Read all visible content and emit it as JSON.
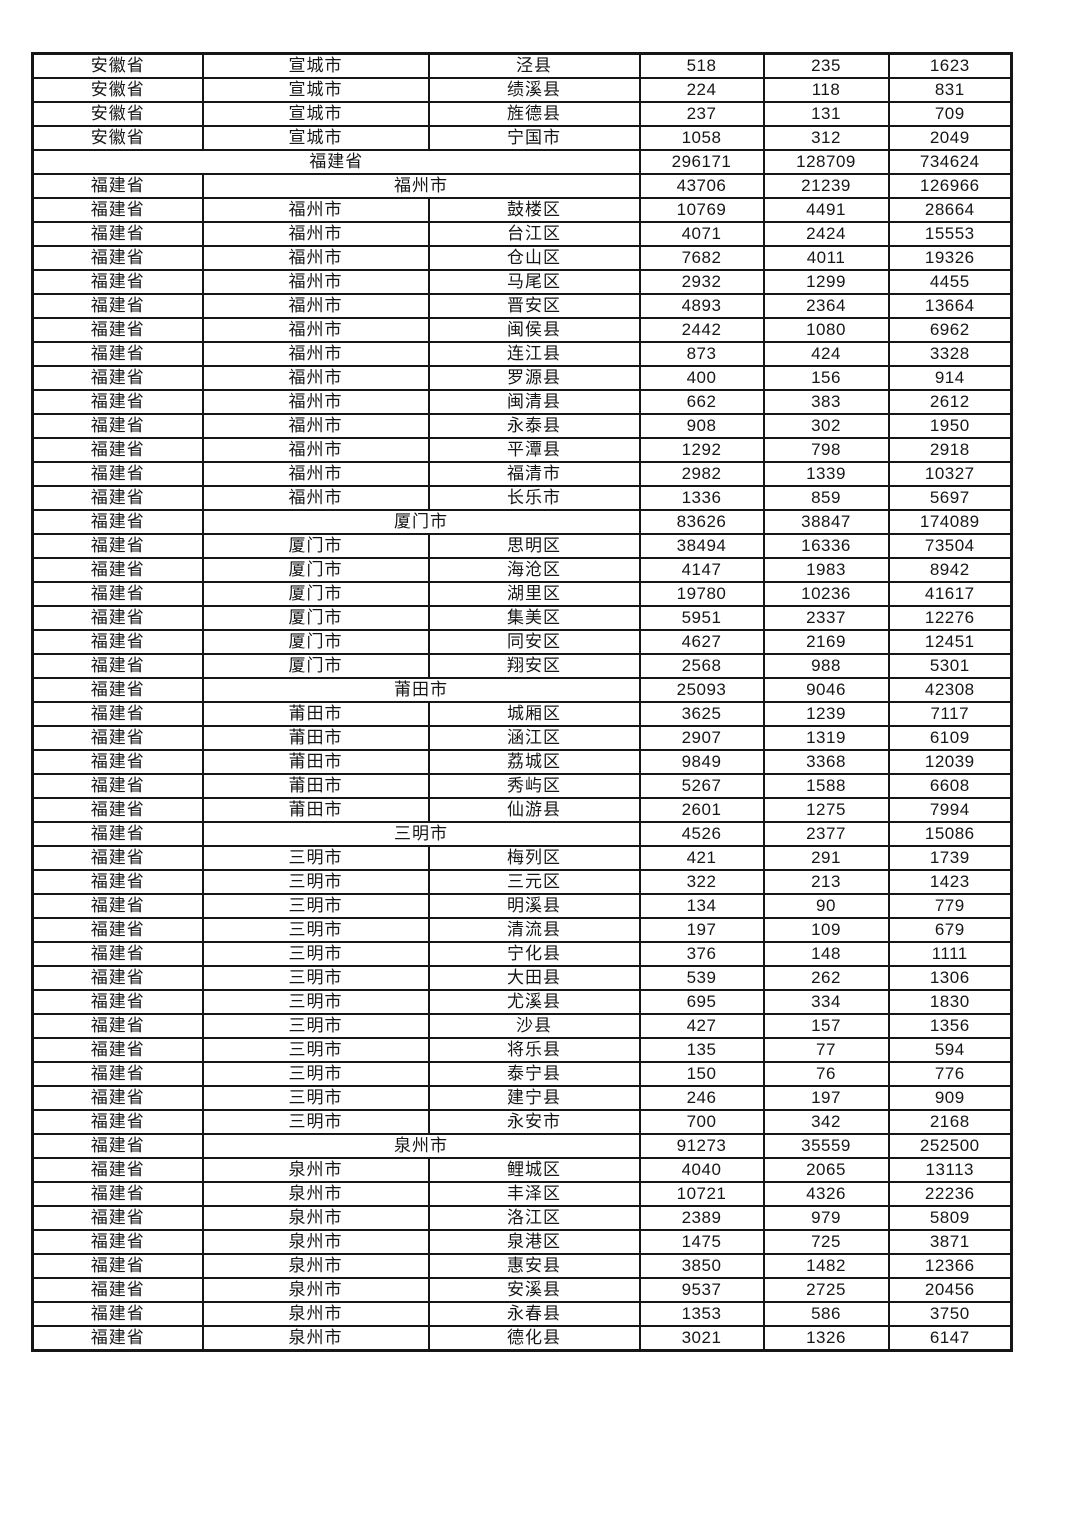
{
  "colors": {
    "background": "#ffffff",
    "border": "#161616",
    "text": "#161616"
  },
  "table": {
    "columns": [
      "province",
      "city",
      "district",
      "value1",
      "value2",
      "value3"
    ],
    "rows": [
      {
        "type": "data",
        "province": "安徽省",
        "city": "宣城市",
        "district": "泾县",
        "values": [
          518,
          235,
          1623
        ]
      },
      {
        "type": "data",
        "province": "安徽省",
        "city": "宣城市",
        "district": "绩溪县",
        "values": [
          224,
          118,
          831
        ]
      },
      {
        "type": "data",
        "province": "安徽省",
        "city": "宣城市",
        "district": "旌德县",
        "values": [
          237,
          131,
          709
        ]
      },
      {
        "type": "data",
        "province": "安徽省",
        "city": "宣城市",
        "district": "宁国市",
        "values": [
          1058,
          312,
          2049
        ]
      },
      {
        "type": "province_total",
        "label": "福建省",
        "values": [
          296171,
          128709,
          734624
        ]
      },
      {
        "type": "city_total",
        "province": "福建省",
        "city": "福州市",
        "values": [
          43706,
          21239,
          126966
        ]
      },
      {
        "type": "data",
        "province": "福建省",
        "city": "福州市",
        "district": "鼓楼区",
        "values": [
          10769,
          4491,
          28664
        ]
      },
      {
        "type": "data",
        "province": "福建省",
        "city": "福州市",
        "district": "台江区",
        "values": [
          4071,
          2424,
          15553
        ]
      },
      {
        "type": "data",
        "province": "福建省",
        "city": "福州市",
        "district": "仓山区",
        "values": [
          7682,
          4011,
          19326
        ]
      },
      {
        "type": "data",
        "province": "福建省",
        "city": "福州市",
        "district": "马尾区",
        "values": [
          2932,
          1299,
          4455
        ]
      },
      {
        "type": "data",
        "province": "福建省",
        "city": "福州市",
        "district": "晋安区",
        "values": [
          4893,
          2364,
          13664
        ]
      },
      {
        "type": "data",
        "province": "福建省",
        "city": "福州市",
        "district": "闽侯县",
        "values": [
          2442,
          1080,
          6962
        ]
      },
      {
        "type": "data",
        "province": "福建省",
        "city": "福州市",
        "district": "连江县",
        "values": [
          873,
          424,
          3328
        ]
      },
      {
        "type": "data",
        "province": "福建省",
        "city": "福州市",
        "district": "罗源县",
        "values": [
          400,
          156,
          914
        ]
      },
      {
        "type": "data",
        "province": "福建省",
        "city": "福州市",
        "district": "闽清县",
        "values": [
          662,
          383,
          2612
        ]
      },
      {
        "type": "data",
        "province": "福建省",
        "city": "福州市",
        "district": "永泰县",
        "values": [
          908,
          302,
          1950
        ]
      },
      {
        "type": "data",
        "province": "福建省",
        "city": "福州市",
        "district": "平潭县",
        "values": [
          1292,
          798,
          2918
        ]
      },
      {
        "type": "data",
        "province": "福建省",
        "city": "福州市",
        "district": "福清市",
        "values": [
          2982,
          1339,
          10327
        ]
      },
      {
        "type": "data",
        "province": "福建省",
        "city": "福州市",
        "district": "长乐市",
        "values": [
          1336,
          859,
          5697
        ]
      },
      {
        "type": "city_total",
        "province": "福建省",
        "city": "厦门市",
        "values": [
          83626,
          38847,
          174089
        ]
      },
      {
        "type": "data",
        "province": "福建省",
        "city": "厦门市",
        "district": "思明区",
        "values": [
          38494,
          16336,
          73504
        ]
      },
      {
        "type": "data",
        "province": "福建省",
        "city": "厦门市",
        "district": "海沧区",
        "values": [
          4147,
          1983,
          8942
        ]
      },
      {
        "type": "data",
        "province": "福建省",
        "city": "厦门市",
        "district": "湖里区",
        "values": [
          19780,
          10236,
          41617
        ]
      },
      {
        "type": "data",
        "province": "福建省",
        "city": "厦门市",
        "district": "集美区",
        "values": [
          5951,
          2337,
          12276
        ]
      },
      {
        "type": "data",
        "province": "福建省",
        "city": "厦门市",
        "district": "同安区",
        "values": [
          4627,
          2169,
          12451
        ]
      },
      {
        "type": "data",
        "province": "福建省",
        "city": "厦门市",
        "district": "翔安区",
        "values": [
          2568,
          988,
          5301
        ]
      },
      {
        "type": "city_total",
        "province": "福建省",
        "city": "莆田市",
        "values": [
          25093,
          9046,
          42308
        ]
      },
      {
        "type": "data",
        "province": "福建省",
        "city": "莆田市",
        "district": "城厢区",
        "values": [
          3625,
          1239,
          7117
        ]
      },
      {
        "type": "data",
        "province": "福建省",
        "city": "莆田市",
        "district": "涵江区",
        "values": [
          2907,
          1319,
          6109
        ]
      },
      {
        "type": "data",
        "province": "福建省",
        "city": "莆田市",
        "district": "荔城区",
        "values": [
          9849,
          3368,
          12039
        ]
      },
      {
        "type": "data",
        "province": "福建省",
        "city": "莆田市",
        "district": "秀屿区",
        "values": [
          5267,
          1588,
          6608
        ]
      },
      {
        "type": "data",
        "province": "福建省",
        "city": "莆田市",
        "district": "仙游县",
        "values": [
          2601,
          1275,
          7994
        ]
      },
      {
        "type": "city_total",
        "province": "福建省",
        "city": "三明市",
        "values": [
          4526,
          2377,
          15086
        ]
      },
      {
        "type": "data",
        "province": "福建省",
        "city": "三明市",
        "district": "梅列区",
        "values": [
          421,
          291,
          1739
        ]
      },
      {
        "type": "data",
        "province": "福建省",
        "city": "三明市",
        "district": "三元区",
        "values": [
          322,
          213,
          1423
        ]
      },
      {
        "type": "data",
        "province": "福建省",
        "city": "三明市",
        "district": "明溪县",
        "values": [
          134,
          90,
          779
        ]
      },
      {
        "type": "data",
        "province": "福建省",
        "city": "三明市",
        "district": "清流县",
        "values": [
          197,
          109,
          679
        ]
      },
      {
        "type": "data",
        "province": "福建省",
        "city": "三明市",
        "district": "宁化县",
        "values": [
          376,
          148,
          1111
        ]
      },
      {
        "type": "data",
        "province": "福建省",
        "city": "三明市",
        "district": "大田县",
        "values": [
          539,
          262,
          1306
        ]
      },
      {
        "type": "data",
        "province": "福建省",
        "city": "三明市",
        "district": "尤溪县",
        "values": [
          695,
          334,
          1830
        ]
      },
      {
        "type": "data",
        "province": "福建省",
        "city": "三明市",
        "district": "沙县",
        "values": [
          427,
          157,
          1356
        ]
      },
      {
        "type": "data",
        "province": "福建省",
        "city": "三明市",
        "district": "将乐县",
        "values": [
          135,
          77,
          594
        ]
      },
      {
        "type": "data",
        "province": "福建省",
        "city": "三明市",
        "district": "泰宁县",
        "values": [
          150,
          76,
          776
        ]
      },
      {
        "type": "data",
        "province": "福建省",
        "city": "三明市",
        "district": "建宁县",
        "values": [
          246,
          197,
          909
        ]
      },
      {
        "type": "data",
        "province": "福建省",
        "city": "三明市",
        "district": "永安市",
        "values": [
          700,
          342,
          2168
        ]
      },
      {
        "type": "city_total",
        "province": "福建省",
        "city": "泉州市",
        "values": [
          91273,
          35559,
          252500
        ]
      },
      {
        "type": "data",
        "province": "福建省",
        "city": "泉州市",
        "district": "鲤城区",
        "values": [
          4040,
          2065,
          13113
        ]
      },
      {
        "type": "data",
        "province": "福建省",
        "city": "泉州市",
        "district": "丰泽区",
        "values": [
          10721,
          4326,
          22236
        ]
      },
      {
        "type": "data",
        "province": "福建省",
        "city": "泉州市",
        "district": "洛江区",
        "values": [
          2389,
          979,
          5809
        ]
      },
      {
        "type": "data",
        "province": "福建省",
        "city": "泉州市",
        "district": "泉港区",
        "values": [
          1475,
          725,
          3871
        ]
      },
      {
        "type": "data",
        "province": "福建省",
        "city": "泉州市",
        "district": "惠安县",
        "values": [
          3850,
          1482,
          12366
        ]
      },
      {
        "type": "data",
        "province": "福建省",
        "city": "泉州市",
        "district": "安溪县",
        "values": [
          9537,
          2725,
          20456
        ]
      },
      {
        "type": "data",
        "province": "福建省",
        "city": "泉州市",
        "district": "永春县",
        "values": [
          1353,
          586,
          3750
        ]
      },
      {
        "type": "data",
        "province": "福建省",
        "city": "泉州市",
        "district": "德化县",
        "values": [
          3021,
          1326,
          6147
        ]
      }
    ]
  }
}
